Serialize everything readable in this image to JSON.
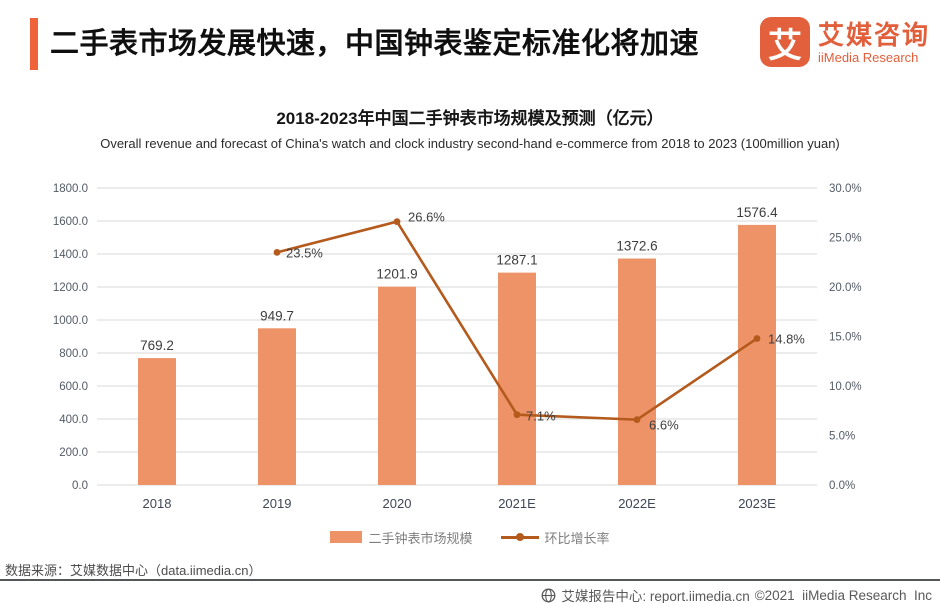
{
  "header": {
    "title": "二手表市场发展快速，中国钟表鉴定标准化将加速",
    "logo": {
      "glyph": "艾",
      "name_cn": "艾媒咨询",
      "name_en": "iiMedia Research"
    }
  },
  "chart": {
    "title": "2018-2023年中国二手钟表市场规模及预测（亿元）",
    "subtitle": "Overall revenue and forecast of China's  watch and clock industry second-hand e-commerce from 2018 to 2023 (100million yuan)"
  },
  "chart_data": {
    "type": "bar",
    "categories": [
      "2018",
      "2019",
      "2020",
      "2021E",
      "2022E",
      "2023E"
    ],
    "series": [
      {
        "name": "二手钟表市场规模",
        "type": "bar",
        "axis": "left",
        "color": "#EE9368",
        "values": [
          769.2,
          949.7,
          1201.9,
          1287.1,
          1372.6,
          1576.4
        ]
      },
      {
        "name": "环比增长率",
        "type": "line",
        "axis": "right",
        "color": "#B45A1D",
        "unit": "%",
        "values": [
          null,
          23.5,
          26.6,
          7.1,
          6.6,
          14.8
        ]
      }
    ],
    "title": "2018-2023年中国二手钟表市场规模及预测（亿元）",
    "xlabel": "",
    "ylabel_left": "亿元",
    "ylabel_right": "%",
    "left_axis": {
      "min": 0,
      "max": 1800,
      "step": 200,
      "decimals": 1
    },
    "right_axis": {
      "min": 0,
      "max": 30,
      "step": 5,
      "decimals": 1,
      "unit": "%"
    },
    "grid": true,
    "grid_color": "#d9d9d9",
    "legend_position": "bottom"
  },
  "footer": {
    "source": "数据来源：艾媒数据中心（data.iimedia.cn）",
    "report_center": "艾媒报告中心: report.iimedia.cn",
    "copyright": "©2021  iiMedia Research  Inc"
  },
  "colors": {
    "accent": "#F0633A",
    "logo": "#E2603C",
    "bar": "#EE9368",
    "line": "#B45A1D"
  }
}
